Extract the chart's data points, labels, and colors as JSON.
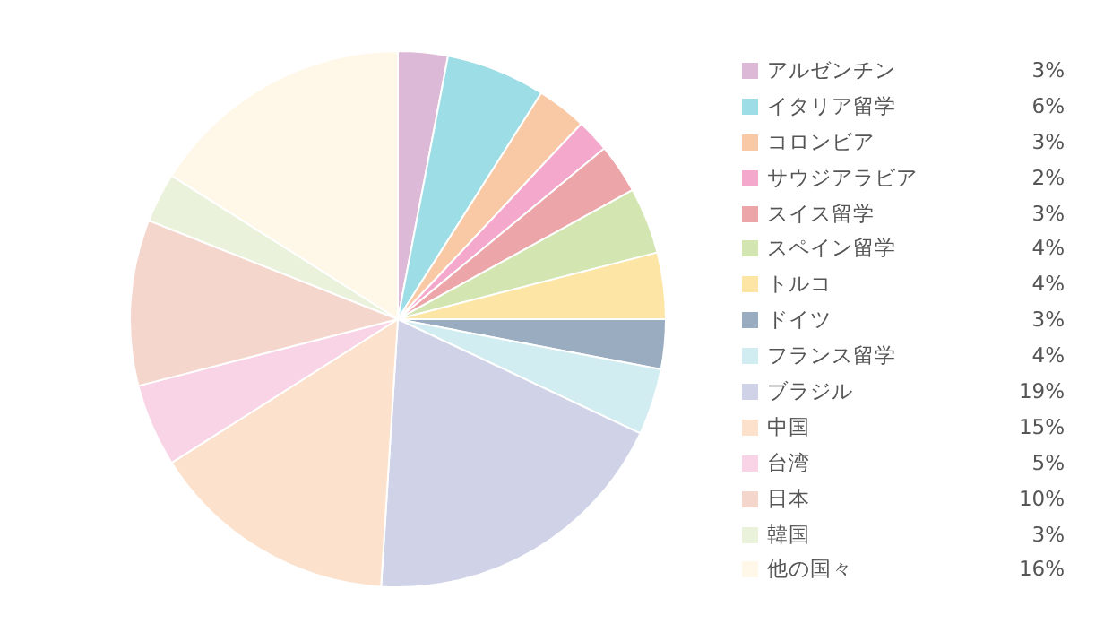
{
  "chart_data": {
    "type": "pie",
    "categories": [
      "アルゼンチン",
      "イタリア留学",
      "コロンビア",
      "サウジアラビア",
      "スイス留学",
      "スペイン留学",
      "トルコ",
      "ドイツ",
      "フランス留学",
      "ブラジル",
      "中国",
      "台湾",
      "日本",
      "韓国",
      "他の国々"
    ],
    "values": [
      3,
      6,
      3,
      2,
      3,
      4,
      4,
      3,
      4,
      19,
      15,
      5,
      10,
      3,
      16
    ],
    "value_labels": [
      "3%",
      "6%",
      "3%",
      "2%",
      "3%",
      "4%",
      "4%",
      "3%",
      "4%",
      "19%",
      "15%",
      "5%",
      "10%",
      "3%",
      "16%"
    ],
    "colors": [
      "#dcb9d7",
      "#9ddde6",
      "#f9c9a5",
      "#f4a9cc",
      "#eca5a8",
      "#d3e6b1",
      "#fde5a6",
      "#99acc0",
      "#d2edf1",
      "#d0d3e8",
      "#fce1cd",
      "#f9d4e6",
      "#f4d6cc",
      "#eaf2dc",
      "#fff8e9"
    ],
    "legend": "right"
  }
}
